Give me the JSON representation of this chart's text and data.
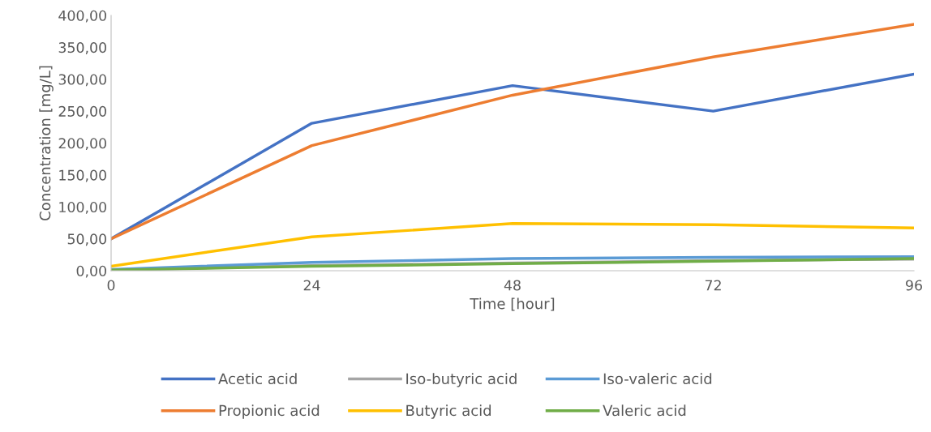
{
  "chart_data": {
    "type": "line",
    "xlabel": "Time [hour]",
    "ylabel": "Concentration [mg/L]",
    "x": [
      0,
      24,
      48,
      72,
      96
    ],
    "xlim": [
      0,
      96
    ],
    "xticks": [
      0,
      24,
      48,
      72,
      96
    ],
    "ylim": [
      0,
      400
    ],
    "yticks": [
      {
        "value": 0,
        "label": "0,00"
      },
      {
        "value": 50,
        "label": "50,00"
      },
      {
        "value": 100,
        "label": "100,00"
      },
      {
        "value": 150,
        "label": "150,00"
      },
      {
        "value": 200,
        "label": "200,00"
      },
      {
        "value": 250,
        "label": "250,00"
      },
      {
        "value": 300,
        "label": "300,00"
      },
      {
        "value": 350,
        "label": "350,00"
      },
      {
        "value": 400,
        "label": "400,00"
      }
    ],
    "grid": false,
    "legend": "bottom",
    "marker": "none",
    "line_style": "solid",
    "series": [
      {
        "name": "Acetic acid",
        "color": "#4472c4",
        "values": [
          50,
          231,
          290,
          250,
          308
        ]
      },
      {
        "name": "Propionic acid",
        "color": "#ed7d31",
        "values": [
          50,
          196,
          275,
          335,
          386
        ]
      },
      {
        "name": "Iso-butyric acid",
        "color": "#a5a5a5",
        "values": [
          1,
          8,
          12,
          16,
          18
        ]
      },
      {
        "name": "Butyric acid",
        "color": "#ffc000",
        "values": [
          7,
          53,
          74,
          72,
          67
        ]
      },
      {
        "name": "Iso-valeric acid",
        "color": "#5b9bd5",
        "values": [
          2,
          13,
          19,
          21,
          22
        ]
      },
      {
        "name": "Valeric acid",
        "color": "#70ad47",
        "values": [
          1,
          7,
          11,
          15,
          19
        ]
      }
    ]
  }
}
